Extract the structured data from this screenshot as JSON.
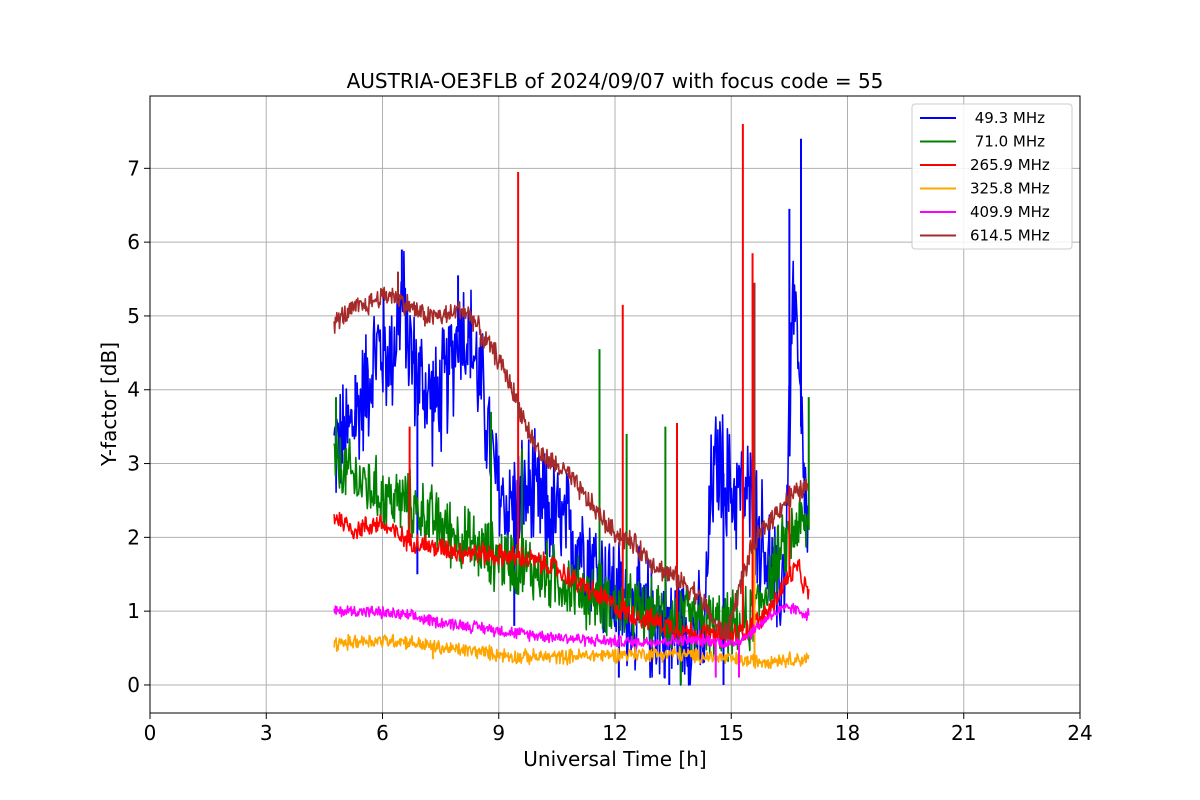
{
  "chart_data": {
    "type": "line",
    "title": "AUSTRIA-OE3FLB of 2024/09/07 with focus code = 55",
    "xlabel": "Universal Time [h]",
    "ylabel": "Y-factor [dB]",
    "xlim": [
      0,
      24
    ],
    "ylim": [
      -0.38,
      7.98
    ],
    "xticks": [
      "0",
      "3",
      "6",
      "9",
      "12",
      "15",
      "18",
      "21",
      "24"
    ],
    "xtick_values": [
      0,
      3,
      6,
      9,
      12,
      15,
      18,
      21,
      24
    ],
    "yticks": [
      "0",
      "1",
      "2",
      "3",
      "4",
      "5",
      "6",
      "7"
    ],
    "ytick_values": [
      0,
      1,
      2,
      3,
      4,
      5,
      6,
      7
    ],
    "grid": true,
    "legend_position": "top-right",
    "series": [
      {
        "name": " 49.3 MHz",
        "color": "#0000ff",
        "x": [
          4.75,
          5.0,
          5.3,
          5.6,
          5.9,
          6.2,
          6.5,
          6.8,
          7.1,
          7.4,
          7.7,
          8.0,
          8.3,
          8.6,
          8.9,
          9.2,
          9.5,
          9.8,
          10.1,
          10.4,
          10.7,
          11.0,
          11.3,
          11.6,
          11.9,
          12.2,
          12.5,
          12.8,
          13.1,
          13.4,
          13.7,
          14.0,
          14.3,
          14.5,
          14.7,
          15.0,
          15.3,
          15.6,
          15.9,
          16.2,
          16.4,
          16.6,
          16.8,
          17.0
        ],
        "y": [
          3.2,
          3.3,
          3.6,
          4.1,
          4.6,
          4.4,
          5.2,
          4.3,
          4.0,
          3.8,
          4.2,
          4.9,
          4.6,
          3.9,
          2.8,
          2.4,
          2.5,
          2.6,
          2.4,
          2.3,
          2.1,
          2.0,
          1.8,
          1.5,
          1.3,
          1.1,
          1.0,
          0.9,
          0.85,
          0.8,
          0.75,
          0.7,
          0.6,
          2.8,
          3.0,
          2.6,
          2.7,
          2.3,
          1.8,
          1.2,
          1.7,
          5.5,
          3.5,
          1.8
        ],
        "spikes": [
          [
            5.3,
            4.2
          ],
          [
            6.5,
            5.9
          ],
          [
            6.9,
            1.5
          ],
          [
            7.95,
            5.55
          ],
          [
            9.4,
            0.8
          ],
          [
            12.1,
            0.1
          ],
          [
            13.4,
            0.0
          ],
          [
            14.8,
            0.0
          ],
          [
            16.5,
            6.45
          ],
          [
            16.8,
            7.4
          ]
        ]
      },
      {
        "name": " 71.0 MHz",
        "color": "#008000",
        "x": [
          4.75,
          5.0,
          5.3,
          5.6,
          5.9,
          6.2,
          6.5,
          6.8,
          7.1,
          7.4,
          7.7,
          8.0,
          8.3,
          8.6,
          8.9,
          9.2,
          9.5,
          9.8,
          10.1,
          10.4,
          10.7,
          11.0,
          11.3,
          11.6,
          11.9,
          12.2,
          12.5,
          12.8,
          13.1,
          13.4,
          13.7,
          14.0,
          14.3,
          14.6,
          14.9,
          15.2,
          15.5,
          15.8,
          16.1,
          16.4,
          16.7,
          17.0
        ],
        "y": [
          3.0,
          2.9,
          2.8,
          2.7,
          2.6,
          2.5,
          2.5,
          2.4,
          2.3,
          2.2,
          2.1,
          2.0,
          1.9,
          1.8,
          1.75,
          1.7,
          1.65,
          1.6,
          1.5,
          1.45,
          1.4,
          1.3,
          1.2,
          1.2,
          1.1,
          1.05,
          1.0,
          0.95,
          0.95,
          0.9,
          0.9,
          0.85,
          0.85,
          0.8,
          0.8,
          0.8,
          0.9,
          1.2,
          1.6,
          1.9,
          2.2,
          2.1
        ],
        "spikes": [
          [
            4.8,
            3.9
          ],
          [
            7.2,
            2.0
          ],
          [
            8.8,
            3.7
          ],
          [
            9.6,
            3.2
          ],
          [
            11.6,
            4.55
          ],
          [
            12.3,
            3.4
          ],
          [
            13.3,
            3.5
          ],
          [
            13.7,
            0.0
          ],
          [
            17.0,
            3.9
          ]
        ]
      },
      {
        "name": "265.9 MHz",
        "color": "#ff0000",
        "x": [
          4.75,
          5.0,
          5.3,
          5.6,
          5.9,
          6.2,
          6.5,
          6.8,
          7.1,
          7.4,
          7.7,
          8.0,
          8.3,
          8.6,
          8.9,
          9.2,
          9.5,
          9.8,
          10.1,
          10.4,
          10.7,
          11.0,
          11.3,
          11.6,
          11.9,
          12.2,
          12.5,
          12.8,
          13.1,
          13.4,
          13.7,
          14.0,
          14.3,
          14.6,
          14.9,
          15.2,
          15.5,
          15.8,
          16.1,
          16.4,
          16.7,
          17.0
        ],
        "y": [
          2.3,
          2.2,
          2.1,
          2.15,
          2.2,
          2.1,
          2.0,
          1.95,
          1.9,
          1.85,
          1.85,
          1.8,
          1.8,
          1.78,
          1.75,
          1.75,
          1.72,
          1.7,
          1.65,
          1.6,
          1.5,
          1.4,
          1.3,
          1.2,
          1.1,
          1.0,
          0.95,
          0.9,
          0.85,
          0.8,
          0.75,
          0.7,
          0.7,
          0.65,
          0.65,
          0.7,
          0.8,
          0.9,
          1.1,
          1.4,
          1.6,
          1.2
        ],
        "spikes": [
          [
            6.7,
            3.5
          ],
          [
            9.5,
            6.95
          ],
          [
            12.2,
            5.15
          ],
          [
            13.6,
            3.55
          ],
          [
            15.3,
            7.6
          ],
          [
            15.55,
            5.85
          ],
          [
            16.5,
            2.7
          ]
        ]
      },
      {
        "name": "325.8 MHz",
        "color": "#ffa500",
        "x": [
          4.75,
          5.5,
          6.5,
          7.5,
          8.5,
          9.5,
          10.5,
          11.5,
          12.5,
          13.5,
          14.5,
          15.5,
          16.5,
          17.0
        ],
        "y": [
          0.55,
          0.6,
          0.6,
          0.5,
          0.45,
          0.38,
          0.38,
          0.4,
          0.42,
          0.42,
          0.38,
          0.32,
          0.35,
          0.35
        ],
        "spikes": [
          [
            7.3,
            0.35
          ],
          [
            15.6,
            4.35
          ]
        ]
      },
      {
        "name": "409.9 MHz",
        "color": "#ff00ff",
        "x": [
          4.75,
          5.5,
          6.5,
          7.5,
          8.5,
          9.5,
          10.5,
          11.5,
          12.5,
          13.5,
          14.5,
          15.0,
          15.5,
          16.0,
          16.5,
          17.0
        ],
        "y": [
          1.0,
          1.0,
          0.95,
          0.85,
          0.78,
          0.7,
          0.65,
          0.6,
          0.58,
          0.6,
          0.6,
          0.55,
          0.7,
          0.95,
          1.05,
          0.95
        ],
        "spikes": [
          [
            14.6,
            0.1
          ],
          [
            15.2,
            0.1
          ]
        ]
      },
      {
        "name": "614.5 MHz",
        "color": "#a52a2a",
        "x": [
          4.75,
          5.0,
          5.3,
          5.6,
          5.9,
          6.2,
          6.5,
          6.8,
          7.1,
          7.4,
          7.7,
          8.0,
          8.3,
          8.6,
          8.9,
          9.2,
          9.5,
          9.8,
          10.1,
          10.4,
          10.7,
          11.0,
          11.3,
          11.6,
          11.9,
          12.2,
          12.5,
          12.8,
          13.1,
          13.4,
          13.7,
          14.0,
          14.3,
          14.6,
          14.9,
          15.2,
          15.5,
          15.8,
          16.1,
          16.4,
          16.7,
          17.0
        ],
        "y": [
          4.9,
          5.0,
          5.1,
          5.15,
          5.25,
          5.3,
          5.2,
          5.1,
          5.0,
          5.0,
          5.0,
          5.1,
          5.0,
          4.7,
          4.5,
          4.2,
          3.8,
          3.4,
          3.1,
          3.0,
          2.9,
          2.7,
          2.5,
          2.3,
          2.1,
          2.0,
          1.9,
          1.75,
          1.6,
          1.5,
          1.4,
          1.3,
          1.1,
          0.8,
          0.7,
          1.3,
          1.8,
          2.1,
          2.3,
          2.5,
          2.6,
          2.7
        ],
        "spikes": [
          [
            6.4,
            5.6
          ],
          [
            15.6,
            5.45
          ]
        ]
      }
    ]
  }
}
